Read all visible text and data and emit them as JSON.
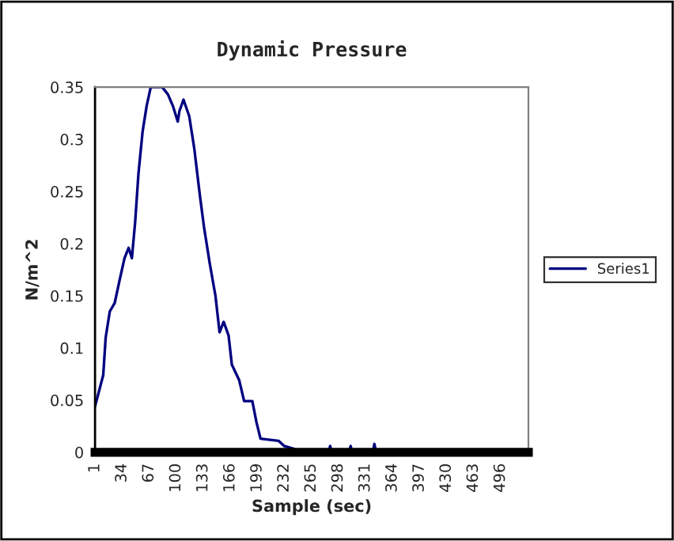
{
  "chart_data": {
    "type": "line",
    "title": "Dynamic Pressure",
    "xlabel": "Sample (sec)",
    "ylabel": "N/m^2",
    "x": [
      1,
      6,
      11,
      14,
      19,
      25,
      31,
      37,
      42,
      46,
      50,
      54,
      59,
      64,
      69,
      77,
      83,
      90,
      96,
      102,
      104,
      109,
      116,
      122,
      129,
      134,
      141,
      148,
      153,
      158,
      164,
      168,
      177,
      183,
      193,
      198,
      203,
      225,
      232,
      245,
      251,
      286,
      288,
      290,
      311,
      313,
      315,
      340,
      342,
      344,
      496
    ],
    "series": [
      {
        "name": "Series1",
        "color": "#000080",
        "values": [
          0.044,
          0.059,
          0.074,
          0.11,
          0.135,
          0.143,
          0.165,
          0.186,
          0.196,
          0.186,
          0.221,
          0.267,
          0.307,
          0.332,
          0.35,
          0.35,
          0.35,
          0.343,
          0.332,
          0.317,
          0.327,
          0.338,
          0.322,
          0.292,
          0.246,
          0.216,
          0.181,
          0.15,
          0.115,
          0.125,
          0.112,
          0.084,
          0.069,
          0.049,
          0.049,
          0.029,
          0.013,
          0.011,
          0.006,
          0.003,
          0,
          0,
          0.006,
          0,
          0,
          0.006,
          0,
          0,
          0.008,
          0,
          0
        ]
      }
    ],
    "xlim": [
      1,
      530
    ],
    "xticks": [
      1,
      34,
      67,
      100,
      133,
      166,
      199,
      232,
      265,
      298,
      331,
      364,
      397,
      430,
      463,
      496
    ],
    "ylim": [
      0,
      0.35
    ],
    "yticks": [
      0,
      0.05,
      0.1,
      0.15,
      0.2,
      0.25,
      0.3,
      0.35
    ],
    "legend": "right",
    "grid": false,
    "marker": "none",
    "line_style": "solid"
  }
}
